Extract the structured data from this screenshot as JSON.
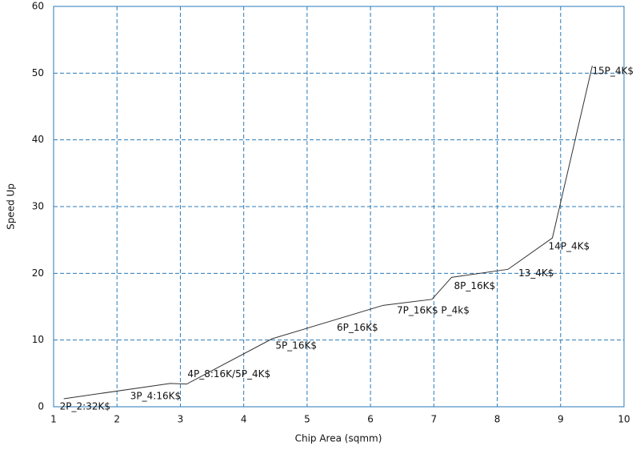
{
  "chart_data": {
    "type": "line",
    "x_label": "Chip Area (sqmm)",
    "y_label": "Speed Up",
    "x": [
      1.16,
      2.84,
      3.1,
      4.45,
      6.2,
      6.97,
      7.28,
      8.17,
      8.87,
      9.5
    ],
    "series": [
      {
        "color": "#333333",
        "values": [
          1.2,
          3.5,
          3.4,
          10.2,
          15.2,
          16.1,
          19.4,
          20.6,
          25.3,
          51.1
        ],
        "point_labels": [
          "2P_2:32K$",
          "3P_4:16K$",
          "4P_8:16K/5P_4K$",
          "5P_16K$",
          "6P_16K$",
          "7P_16K$ P_4k$",
          "8P_16K$",
          "13_4K$",
          "14P_4K$",
          "15P_4K$"
        ]
      }
    ],
    "xlim": [
      1,
      10
    ],
    "xticks": [
      1,
      2,
      3,
      4,
      5,
      6,
      7,
      8,
      9,
      10
    ],
    "ylim": [
      0,
      60
    ],
    "yticks": [
      0,
      10,
      20,
      30,
      40,
      50,
      60
    ],
    "grid": true,
    "grid_color": "#2a7ab8",
    "axis_color": "#2a7ab8"
  }
}
